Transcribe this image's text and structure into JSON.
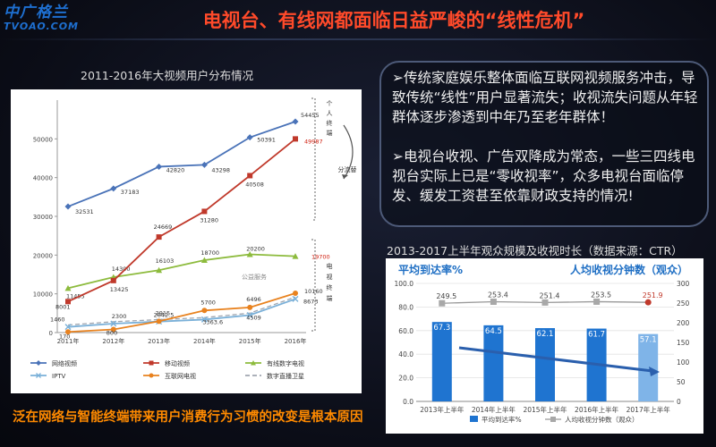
{
  "header": {
    "logo_cn": "中广格兰",
    "logo_en": "TVOAO.COM",
    "title": "电视台、有线网都面临日益严峻的“线性危机”"
  },
  "info": {
    "p1": "➢传统家庭娱乐整体面临互联网视频服务冲击，导致传统“线性”用户显著流失；收视流失问题从年轻群体逐步渗透到中年乃至老年群体！",
    "p2": "➢电视台收视、广告双降成为常态，一些三四线电视台实际上已是“零收视率”，众多电视台面临停发、缓发工资甚至依靠财政支持的情况!"
  },
  "footer": {
    "text": "泛在网络与智能终端带来用户消费行为习惯的改变是根本原因"
  },
  "left_chart_caption": "2011-2016年大视频用户分布情况",
  "right_chart_caption": "2013-2017上半年观众规模及收视时长（数据来源：CTR）",
  "colors": {
    "title_red": "#ff4a2a",
    "footer_orange": "#ff8a00",
    "s_network": "#4a73b8",
    "s_mobile": "#c0392b",
    "s_cable": "#8dbb3d",
    "s_iptv": "#7ab0d8",
    "s_ott": "#e8821f",
    "s_dbs": "#a0a6b0",
    "bar_blue": "#1f74d0",
    "bar_last": "#7fb4e8"
  },
  "chart_data": [
    {
      "type": "line",
      "categories": [
        "2011年",
        "2012年",
        "2013年",
        "2014年",
        "2015年",
        "2016年"
      ],
      "ylim": [
        0,
        60000
      ],
      "yticks": [
        "0",
        "10000",
        "20000",
        "30000",
        "40000",
        "50000"
      ],
      "series": [
        {
          "name": "网络视频",
          "values": [
            32531,
            37183,
            42820,
            43298,
            50391,
            54455
          ],
          "labels": [
            "32531",
            "37183",
            "42820",
            "43298",
            "50391",
            "54455"
          ]
        },
        {
          "name": "移动视频",
          "values": [
            8001,
            13425,
            24669,
            31280,
            40508,
            49987
          ],
          "labels": [
            "8001",
            "13425",
            "24669",
            "31280",
            "40508",
            "49987"
          ]
        },
        {
          "name": "有线数字电视",
          "values": [
            11455,
            14300,
            16103,
            18700,
            20200,
            19700
          ],
          "labels": [
            "11455",
            "14300",
            "16103",
            "18700",
            "20200",
            "19700"
          ]
        },
        {
          "name": "IPTV",
          "values": [
            1460,
            2300,
            2842.5,
            3363.6,
            4509,
            8673
          ],
          "labels": [
            "1460",
            "2300",
            "2842.5",
            "3363.6",
            "4509",
            "8673"
          ]
        },
        {
          "name": "互联网电视",
          "values": [
            170,
            800,
            2915,
            5700,
            6496,
            10160
          ],
          "labels": [
            "170",
            "800",
            "2915",
            "5700",
            "6496",
            "10160"
          ]
        },
        {
          "name": "数字直播卫星",
          "values": [
            1460,
            2300,
            2842.5,
            3363.6,
            4509,
            8673
          ],
          "labels": []
        }
      ],
      "annotations": {
        "personal_terminal": "个人终端",
        "tv_terminal": "电视终端",
        "diversion": "分流替",
        "public_service": "公益服务"
      }
    },
    {
      "type": "bar",
      "categories": [
        "2013年上半年",
        "2014年上半年",
        "2015年上半年",
        "2016年上半年",
        "2017年上半年"
      ],
      "series": [
        {
          "name": "平均到达率%",
          "values": [
            67.3,
            64.5,
            62.1,
            61.7,
            57.1
          ]
        },
        {
          "name": "人均收视分钟数（观众）",
          "values": [
            249.5,
            253.4,
            251.4,
            253.5,
            251.9
          ]
        }
      ],
      "left_title": "平均到达率%",
      "right_title": "人均收视分钟数（观众）",
      "left_ticks": [
        "0.0",
        "20.0",
        "40.0",
        "60.0",
        "80.0",
        "100.0"
      ],
      "right_ticks": [
        "0",
        "50",
        "100",
        "150",
        "200",
        "250",
        "300"
      ],
      "ylim_left": [
        0,
        100
      ],
      "ylim_right": [
        0,
        300
      ]
    }
  ]
}
